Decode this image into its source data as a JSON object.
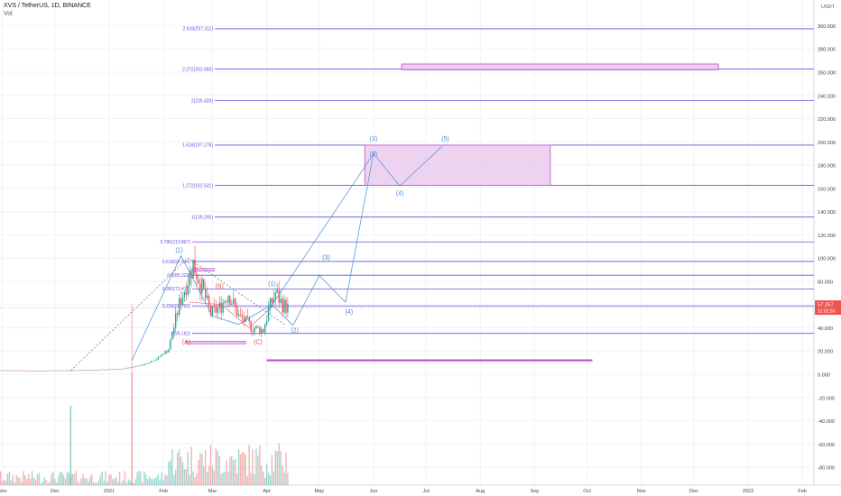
{
  "header": {
    "symbol": "XVS / TetherUS, 1D, BINANCE",
    "volume_label": "Vol"
  },
  "currency_label": "USDT",
  "price_badge": {
    "price": "57.357",
    "countdown": "12:52:53"
  },
  "colors": {
    "fib_line": "#6a4fd8",
    "zone_fill": "#e8c4ec",
    "zone_stroke": "#c04ed0",
    "wave_blue": "#4a8fd4",
    "wave_red": "#e05a5a",
    "candle_up": "#26a69a",
    "candle_down": "#ef5350",
    "price_badge": "#ef5350",
    "grid": "#f0f3fa"
  },
  "chart_data": {
    "type": "candlestick",
    "title": "XVS / TetherUS, 1D, BINANCE",
    "x_tick_labels": [
      "Nov",
      "Dec",
      "2021",
      "Feb",
      "Mar",
      "Apr",
      "May",
      "Jun",
      "Jul",
      "Aug",
      "Sep",
      "Oct",
      "Nov",
      "Dec",
      "2022",
      "Feb"
    ],
    "y_tick_labels": [
      "300.000",
      "280.000",
      "260.000",
      "240.000",
      "220.000",
      "200.000",
      "180.000",
      "160.000",
      "140.000",
      "120.000",
      "100.000",
      "80.000",
      "60.000",
      "40.000",
      "20.000",
      "0.000",
      "-20.000",
      "-40.000",
      "-60.000",
      "-80.000"
    ],
    "y_ticks": [
      300,
      280,
      260,
      240,
      220,
      200,
      180,
      160,
      140,
      120,
      100,
      80,
      60,
      40,
      20,
      0,
      -20,
      -40,
      -60,
      -80
    ],
    "ylim": [
      -88,
      322
    ],
    "last_price": 57.357,
    "fib_levels": [
      {
        "label": "2.618(297.311)",
        "value": 297.311
      },
      {
        "label": "2.272(262.665)",
        "value": 262.665
      },
      {
        "label": "2(235.428)",
        "value": 235.428
      },
      {
        "label": "1.618(197.178)",
        "value": 197.178
      },
      {
        "label": "1.272(162.531)",
        "value": 162.531
      },
      {
        "label": "1(135.295)",
        "value": 135.295
      },
      {
        "label": "0.786(113.867)",
        "value": 113.867
      },
      {
        "label": "0.618(97.044)",
        "value": 97.044
      },
      {
        "label": "0.5(85.229)",
        "value": 85.229
      },
      {
        "label": "0.382(73.413)",
        "value": 73.413
      },
      {
        "label": "0.236(58.793)",
        "value": 58.793
      },
      {
        "label": "0(35.162)",
        "value": 35.162
      }
    ],
    "wave_labels": [
      {
        "text": "(1)",
        "date": "2021-02-10",
        "price": 105,
        "color": "blue"
      },
      {
        "text": "(B)",
        "date": "2021-03-05",
        "price": 74,
        "color": "red"
      },
      {
        "text": "(A)",
        "date": "2021-02-14",
        "price": 26,
        "color": "red"
      },
      {
        "text": "(C)",
        "date": "2021-03-27",
        "price": 26,
        "color": "red"
      },
      {
        "text": "(1)",
        "date": "2021-04-04",
        "price": 76,
        "color": "blue"
      },
      {
        "text": "(2)",
        "date": "2021-04-17",
        "price": 36,
        "color": "blue"
      },
      {
        "text": "(3)",
        "date": "2021-05-05",
        "price": 99,
        "color": "blue"
      },
      {
        "text": "(4)",
        "date": "2021-05-18",
        "price": 52,
        "color": "blue"
      },
      {
        "text": "(3)",
        "date": "2021-06-01",
        "price": 201,
        "color": "blue"
      },
      {
        "text": "(5)",
        "date": "2021-06-01",
        "price": 188,
        "color": "blue"
      },
      {
        "text": "(4)",
        "date": "2021-06-16",
        "price": 154,
        "color": "blue"
      },
      {
        "text": "(5)",
        "date": "2021-07-12",
        "price": 201,
        "color": "blue"
      }
    ]
  }
}
